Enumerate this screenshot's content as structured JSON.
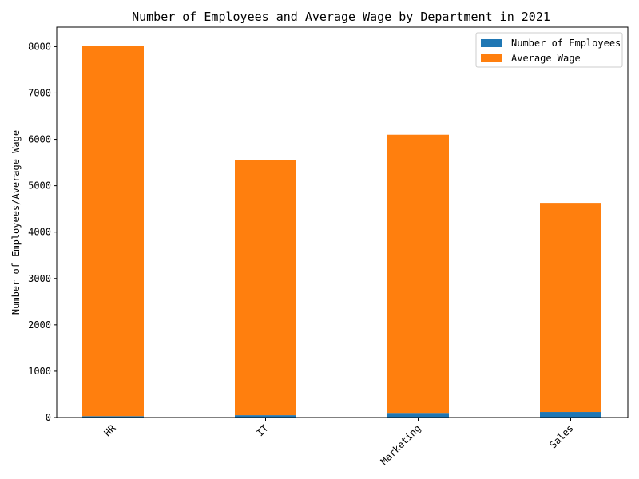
{
  "chart_data": {
    "type": "bar",
    "stacked": true,
    "title": "Number of Employees and Average Wage by Department in 2021",
    "xlabel": "",
    "ylabel": "Number of Employees/Average Wage",
    "categories": [
      "HR",
      "IT",
      "Marketing",
      "Sales"
    ],
    "series": [
      {
        "name": "Number of Employees",
        "values": [
          30,
          50,
          100,
          120
        ],
        "color": "#1f77b4"
      },
      {
        "name": "Average Wage",
        "values": [
          7990,
          5510,
          6000,
          4510
        ],
        "color": "#ff7f0e"
      }
    ],
    "ylim": [
      0,
      8420
    ],
    "yticks": [
      0,
      1000,
      2000,
      3000,
      4000,
      5000,
      6000,
      7000,
      8000
    ],
    "grid": false,
    "legend_position": "top-right"
  }
}
